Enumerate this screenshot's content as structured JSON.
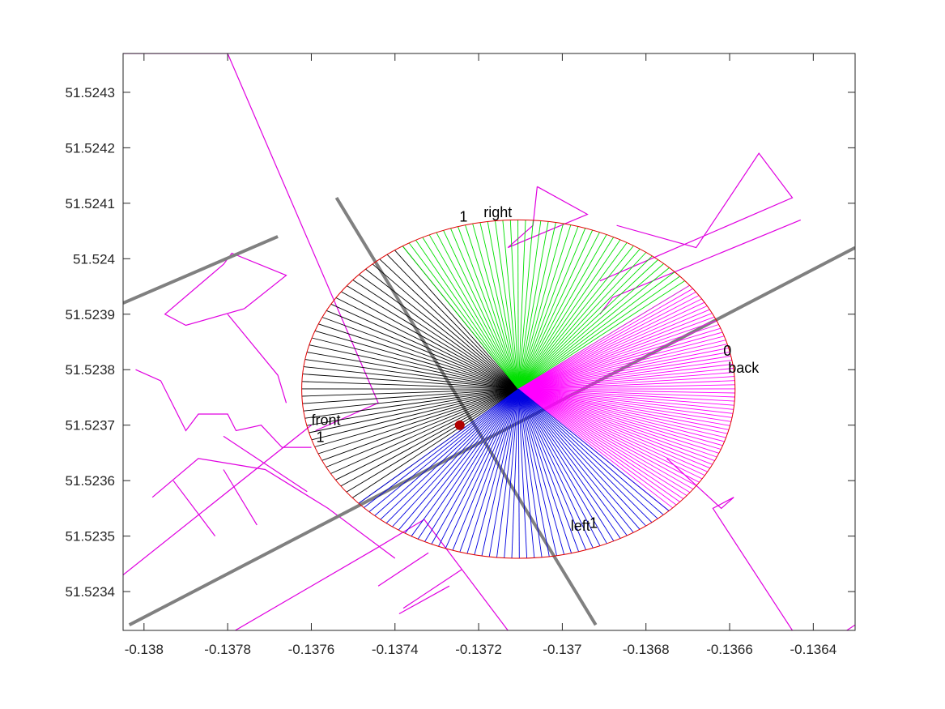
{
  "chart_data": {
    "type": "scatter",
    "title": "",
    "xlabel": "",
    "ylabel": "",
    "xlim": [
      -0.13805,
      -0.1363
    ],
    "ylim": [
      51.52333,
      51.52437
    ],
    "grid": false,
    "xticks": [
      -0.138,
      -0.1378,
      -0.1376,
      -0.1374,
      -0.1372,
      -0.137,
      -0.1368,
      -0.1366,
      -0.1364
    ],
    "xtick_labels": [
      "-0.138",
      "-0.1378",
      "-0.1376",
      "-0.1374",
      "-0.1372",
      "-0.137",
      "-0.1368",
      "-0.1366",
      "-0.1364"
    ],
    "yticks": [
      51.5234,
      51.5235,
      51.5236,
      51.5237,
      51.5238,
      51.5239,
      51.524,
      51.5241,
      51.5242,
      51.5243
    ],
    "ytick_labels": [
      "51.5234",
      "51.5235",
      "51.5236",
      "51.5237",
      "51.5238",
      "51.5239",
      "51.524",
      "51.5241",
      "51.5242",
      "51.5243"
    ],
    "colors": {
      "buildings": "#e000e0",
      "roads": "#808080",
      "circle": "#e00000",
      "front": "#000000",
      "right": "#00e000",
      "back": "#ff00ff",
      "left": "#0000e0",
      "point": "#b00000"
    },
    "viewpoint": {
      "center": [
        -0.137105,
        51.523765
      ],
      "rx": 0.000518,
      "ry": 0.000305
    },
    "sectors": [
      {
        "name": "front",
        "color_key": "front",
        "from_deg": 122.3,
        "to_deg": 222.5,
        "n": 40
      },
      {
        "name": "right",
        "color_key": "right",
        "from_deg": 37.8,
        "to_deg": 122.3,
        "n": 42
      },
      {
        "name": "back",
        "color_key": "back",
        "from_deg": -46,
        "to_deg": 37.8,
        "n": 60
      },
      {
        "name": "left",
        "color_key": "left",
        "from_deg": -137.5,
        "to_deg": -46,
        "n": 46
      }
    ],
    "observer_point": [
      -0.137245,
      51.5237
    ],
    "roads": [
      [
        [
          -0.13805,
          51.52392
        ],
        [
          -0.13768,
          51.52404
        ]
      ],
      [
        [
          -0.138035,
          51.52334
        ],
        [
          -0.1363,
          51.52402
        ]
      ],
      [
        [
          -0.13754,
          51.52411
        ],
        [
          -0.13692,
          51.52334
        ]
      ]
    ],
    "buildings": [
      [
        [
          -0.13805,
          51.52437
        ],
        [
          -0.1378,
          51.52437
        ],
        [
          -0.13744,
          51.52374
        ],
        [
          -0.13759,
          51.52369
        ]
      ],
      [
        [
          -0.13802,
          51.5238
        ],
        [
          -0.13796,
          51.52378
        ],
        [
          -0.1379,
          51.52369
        ],
        [
          -0.13787,
          51.52372
        ],
        [
          -0.1378,
          51.52372
        ],
        [
          -0.13778,
          51.52369
        ],
        [
          -0.13772,
          51.5237
        ],
        [
          -0.13767,
          51.52366
        ],
        [
          -0.1376,
          51.52366
        ]
      ],
      [
        [
          -0.13798,
          51.52357
        ],
        [
          -0.13787,
          51.52364
        ],
        [
          -0.13771,
          51.52362
        ],
        [
          -0.13756,
          51.52355
        ],
        [
          -0.1374,
          51.52346
        ]
      ],
      [
        [
          -0.13805,
          51.52343
        ],
        [
          -0.1376,
          51.5237
        ]
      ],
      [
        [
          -0.13793,
          51.5236
        ],
        [
          -0.13783,
          51.5235
        ]
      ],
      [
        [
          -0.13781,
          51.52362
        ],
        [
          -0.13773,
          51.52352
        ]
      ],
      [
        [
          -0.13781,
          51.52368
        ],
        [
          -0.13761,
          51.52358
        ]
      ],
      [
        [
          -0.13776,
          51.52391
        ],
        [
          -0.13766,
          51.52397
        ],
        [
          -0.13779,
          51.52401
        ],
        [
          -0.13781,
          51.52399
        ],
        [
          -0.13795,
          51.5239
        ],
        [
          -0.1379,
          51.52388
        ],
        [
          -0.13776,
          51.52391
        ]
      ],
      [
        [
          -0.1378,
          51.5239
        ],
        [
          -0.13768,
          51.52379
        ],
        [
          -0.13766,
          51.52374
        ]
      ],
      [
        [
          -0.13733,
          51.52353
        ],
        [
          -0.13744,
          51.52348
        ],
        [
          -0.13785,
          51.5233
        ]
      ],
      [
        [
          -0.13733,
          51.52353
        ],
        [
          -0.13713,
          51.52333
        ]
      ],
      [
        [
          -0.13724,
          51.52344
        ],
        [
          -0.13738,
          51.52337
        ]
      ],
      [
        [
          -0.13727,
          51.52341
        ],
        [
          -0.13739,
          51.52336
        ]
      ],
      [
        [
          -0.13732,
          51.52347
        ],
        [
          -0.13744,
          51.52341
        ]
      ],
      [
        [
          -0.13706,
          51.52413
        ],
        [
          -0.13694,
          51.52408
        ],
        [
          -0.13713,
          51.52402
        ],
        [
          -0.13707,
          51.52406
        ],
        [
          -0.13706,
          51.52413
        ]
      ],
      [
        [
          -0.13687,
          51.52406
        ],
        [
          -0.13668,
          51.52402
        ],
        [
          -0.13653,
          51.52419
        ],
        [
          -0.13645,
          51.52411
        ],
        [
          -0.13691,
          51.52396
        ]
      ],
      [
        [
          -0.13691,
          51.5239
        ],
        [
          -0.13688,
          51.52393
        ],
        [
          -0.13643,
          51.52407
        ]
      ],
      [
        [
          -0.13675,
          51.52364
        ],
        [
          -0.13662,
          51.52355
        ],
        [
          -0.13659,
          51.52357
        ],
        [
          -0.13664,
          51.52355
        ],
        [
          -0.13645,
          51.52333
        ]
      ],
      [
        [
          -0.1363,
          51.52334
        ],
        [
          -0.13632,
          51.52333
        ]
      ]
    ],
    "annotations": [
      {
        "id": "right",
        "lines": [
          "right"
        ],
        "at": [
          -0.137188,
          51.524075
        ]
      },
      {
        "id": "right-1",
        "lines": [
          "1"
        ],
        "at": [
          -0.137246,
          51.524067
        ]
      },
      {
        "id": "back",
        "lines": [
          "0",
          "back"
        ],
        "at": [
          -0.136615,
          51.523825
        ]
      },
      {
        "id": "front",
        "lines": [
          "front",
          "1"
        ],
        "at": [
          -0.1376,
          51.5237
        ]
      },
      {
        "id": "left",
        "lines": [
          "left"
        ],
        "at": [
          -0.13698,
          51.52351
        ]
      },
      {
        "id": "left-1",
        "lines": [
          "1"
        ],
        "at": [
          -0.136935,
          51.523515
        ]
      }
    ]
  }
}
